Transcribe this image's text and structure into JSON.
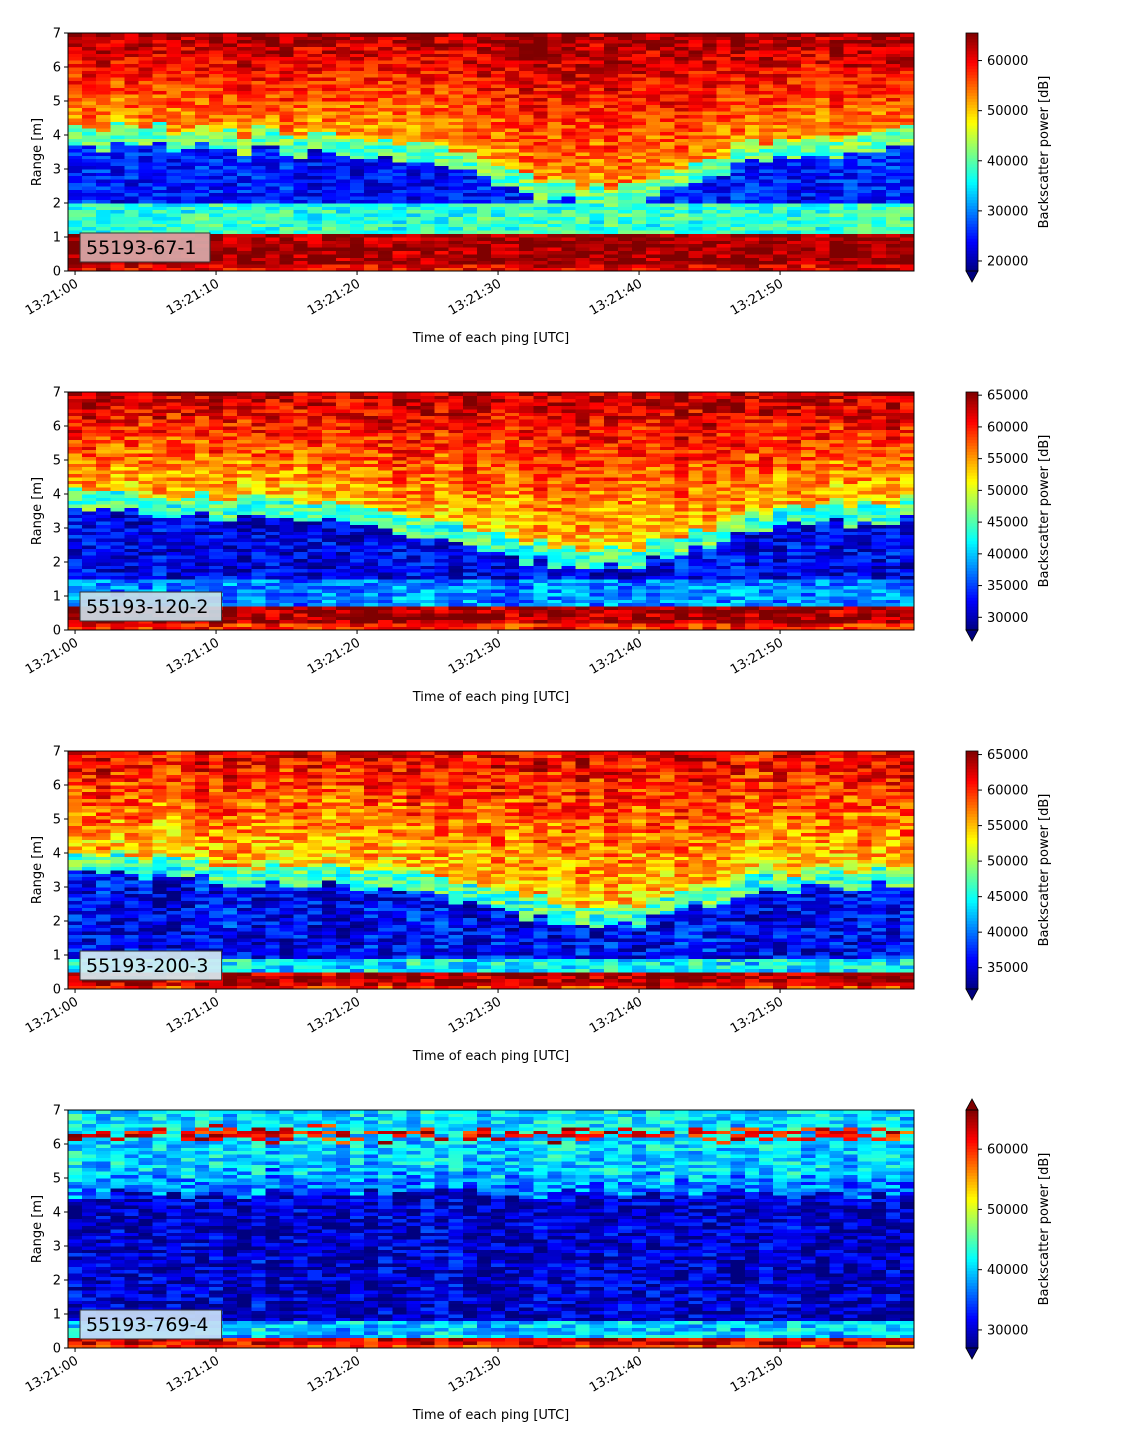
{
  "figure": {
    "colormap": "jet",
    "colormap_stops": [
      "#00007f",
      "#0000ff",
      "#007fff",
      "#00ffff",
      "#7fff7f",
      "#ffff00",
      "#ff7f00",
      "#ff0000",
      "#7f0000"
    ]
  },
  "chart_data": [
    {
      "type": "heatmap",
      "panel_label": "55193-67-1",
      "label_box_color": "#d9a9a9",
      "xlabel": "Time of each ping [UTC]",
      "ylabel": "Range [m]",
      "colorbar_label": "Backscatter power [dB]",
      "x_tick_labels": [
        "13:21:00",
        "13:21:10",
        "13:21:20",
        "13:21:30",
        "13:21:40",
        "13:21:50"
      ],
      "x_tick_seconds": [
        0,
        10,
        20,
        30,
        40,
        50
      ],
      "x_range_seconds": [
        -0.5,
        59.5
      ],
      "ylim": [
        0,
        7
      ],
      "y_ticks": [
        0,
        1,
        2,
        3,
        4,
        5,
        6,
        7
      ],
      "clim": [
        18000,
        65500
      ],
      "cbar_ticks": [
        20000,
        30000,
        40000,
        50000,
        60000
      ],
      "extend": "min",
      "pings": 60,
      "range_bins": 70,
      "profile": {
        "surface_band": [
          0.25,
          1.15
        ],
        "surface_level": 64500,
        "cyan_band": [
          1.15,
          2.0
        ],
        "cyan_level": 38000,
        "low_level": 25000,
        "transition_depth": [
          4.1,
          4.1,
          4.1,
          4.1,
          4.0,
          4.0,
          3.9,
          3.8,
          3.7,
          3.6,
          3.5,
          2.8,
          2.5,
          2.45,
          2.5,
          2.8,
          3.2,
          3.6,
          3.7,
          3.8,
          3.9,
          4.0
        ],
        "upper_level": 52000,
        "top_level": 64000,
        "noise": 4500
      }
    },
    {
      "type": "heatmap",
      "panel_label": "55193-120-2",
      "label_box_color": "#c9dde8",
      "xlabel": "Time of each ping [UTC]",
      "ylabel": "Range [m]",
      "colorbar_label": "Backscatter power [dB]",
      "x_tick_labels": [
        "13:21:00",
        "13:21:10",
        "13:21:20",
        "13:21:30",
        "13:21:40",
        "13:21:50"
      ],
      "x_tick_seconds": [
        0,
        10,
        20,
        30,
        40,
        50
      ],
      "x_range_seconds": [
        -0.5,
        59.5
      ],
      "ylim": [
        0,
        7
      ],
      "y_ticks": [
        0,
        1,
        2,
        3,
        4,
        5,
        6,
        7
      ],
      "clim": [
        28000,
        65500
      ],
      "cbar_ticks": [
        30000,
        35000,
        40000,
        45000,
        50000,
        55000,
        60000,
        65000
      ],
      "extend": "min",
      "pings": 60,
      "range_bins": 70,
      "profile": {
        "surface_band": [
          0.2,
          0.75
        ],
        "surface_level": 64000,
        "cyan_band": [
          0.75,
          1.5
        ],
        "cyan_level": 38000,
        "low_level": 32000,
        "transition_depth": [
          4.1,
          4.0,
          3.9,
          3.9,
          3.8,
          3.7,
          3.6,
          3.5,
          3.4,
          3.2,
          3.0,
          2.6,
          2.4,
          2.25,
          2.3,
          2.6,
          3.0,
          3.3,
          3.5,
          3.6,
          3.6,
          3.7
        ],
        "upper_level": 53000,
        "top_level": 63500,
        "noise": 4000
      }
    },
    {
      "type": "heatmap",
      "panel_label": "55193-200-3",
      "label_box_color": "#d4ecf2",
      "xlabel": "Time of each ping [UTC]",
      "ylabel": "Range [m]",
      "colorbar_label": "Backscatter power [dB]",
      "x_tick_labels": [
        "13:21:00",
        "13:21:10",
        "13:21:20",
        "13:21:30",
        "13:21:40",
        "13:21:50"
      ],
      "x_tick_seconds": [
        0,
        10,
        20,
        30,
        40,
        50
      ],
      "x_range_seconds": [
        -0.5,
        59.5
      ],
      "ylim": [
        0,
        7
      ],
      "y_ticks": [
        0,
        1,
        2,
        3,
        4,
        5,
        6,
        7
      ],
      "clim": [
        32000,
        65500
      ],
      "cbar_ticks": [
        35000,
        40000,
        45000,
        50000,
        55000,
        60000,
        65000
      ],
      "extend": "min",
      "pings": 60,
      "range_bins": 70,
      "profile": {
        "surface_band": [
          0.15,
          0.45
        ],
        "surface_level": 64000,
        "cyan_band": [
          0.45,
          0.9
        ],
        "cyan_level": 44000,
        "low_level": 36000,
        "transition_depth": [
          4.0,
          3.9,
          3.8,
          3.7,
          3.6,
          3.5,
          3.5,
          3.4,
          3.3,
          3.2,
          3.1,
          2.8,
          2.4,
          2.3,
          2.4,
          2.7,
          3.0,
          3.3,
          3.4,
          3.5,
          3.5,
          3.6
        ],
        "upper_level": 54000,
        "top_level": 62000,
        "noise": 4000
      }
    },
    {
      "type": "heatmap",
      "panel_label": "55193-769-4",
      "label_box_color": "#c9def5",
      "xlabel": "Time of each ping [UTC]",
      "ylabel": "Range [m]",
      "colorbar_label": "Backscatter power [dB]",
      "x_tick_labels": [
        "13:21:00",
        "13:21:10",
        "13:21:20",
        "13:21:30",
        "13:21:40",
        "13:21:50"
      ],
      "x_tick_seconds": [
        0,
        10,
        20,
        30,
        40,
        50
      ],
      "x_range_seconds": [
        -0.5,
        59.5
      ],
      "ylim": [
        0,
        7
      ],
      "y_ticks": [
        0,
        1,
        2,
        3,
        4,
        5,
        6,
        7
      ],
      "clim": [
        27000,
        66500
      ],
      "cbar_ticks": [
        30000,
        40000,
        50000,
        60000
      ],
      "extend": "both",
      "pings": 60,
      "range_bins": 70,
      "profile": {
        "surface_band": [
          0.05,
          0.35
        ],
        "surface_level": 63000,
        "cyan_band": [
          0.35,
          0.8
        ],
        "cyan_level": 40000,
        "low_level": 30000,
        "transition_depth": [
          5.0,
          5.0,
          5.0,
          5.0,
          5.0,
          5.0,
          5.0,
          5.0,
          5.0,
          5.0,
          5.0,
          5.0,
          5.0,
          5.0,
          5.0,
          5.0,
          5.0,
          5.0,
          5.0,
          5.0,
          5.0,
          5.0
        ],
        "upper_level": 40000,
        "top_level": 41000,
        "noise": 4500,
        "echo_line": 6.3,
        "echo_level": 62000
      }
    }
  ]
}
